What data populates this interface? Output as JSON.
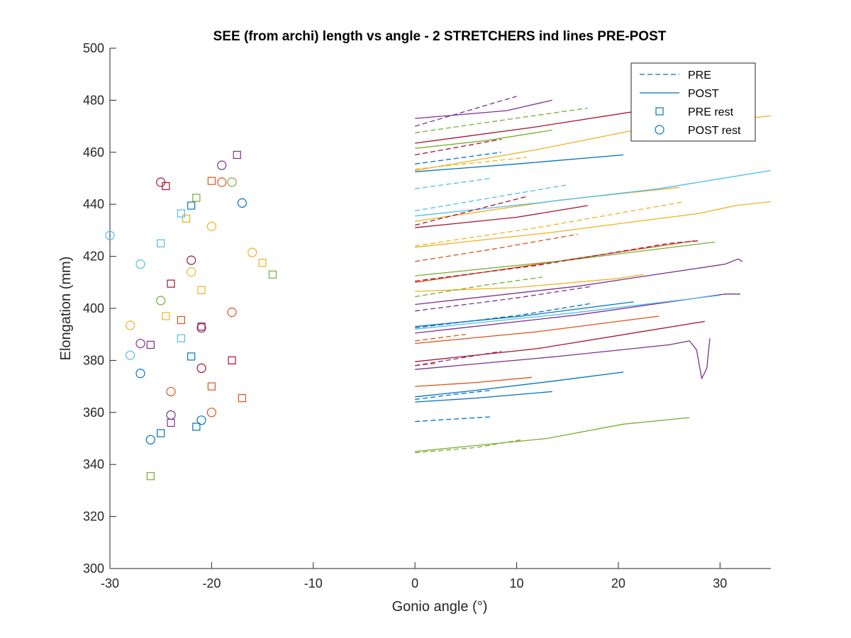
{
  "chart_data": {
    "type": "line",
    "title": "SEE (from archi) length vs angle - 2 STRETCHERS ind lines PRE-POST",
    "xlabel": "Gonio angle (°)",
    "ylabel": "Elongation (mm)",
    "xlim": [
      -30,
      35
    ],
    "ylim": [
      300,
      500
    ],
    "xticks": [
      -30,
      -20,
      -10,
      0,
      10,
      20,
      30
    ],
    "yticks": [
      300,
      320,
      340,
      360,
      380,
      400,
      420,
      440,
      460,
      480,
      500
    ],
    "grid": false,
    "legend": {
      "placement": "top-right",
      "entries": [
        {
          "label": "PRE",
          "kind": "dashed-line"
        },
        {
          "label": "POST",
          "kind": "solid-line"
        },
        {
          "label": "PRE rest",
          "kind": "square-marker"
        },
        {
          "label": "POST rest",
          "kind": "circle-marker"
        }
      ]
    },
    "colors": {
      "blue": "#0072BD",
      "orange": "#D95319",
      "yellow": "#EDB120",
      "purple": "#7E2F8E",
      "green": "#77AC30",
      "cyan": "#4DBEEE",
      "red": "#A2142F"
    },
    "series": [
      {
        "color": "blue",
        "style": "dashed",
        "points": [
          [
            0,
            356.5
          ],
          [
            7.5,
            358.3
          ]
        ]
      },
      {
        "color": "blue",
        "style": "dashed",
        "points": [
          [
            0,
            455.5
          ],
          [
            8.5,
            460.0
          ]
        ]
      },
      {
        "color": "blue",
        "style": "dashed",
        "points": [
          [
            0,
            392.5
          ],
          [
            10.5,
            397.5
          ],
          [
            17.5,
            402.0
          ]
        ]
      },
      {
        "color": "blue",
        "style": "dashed",
        "points": [
          [
            0,
            365.0
          ],
          [
            4.0,
            367.0
          ],
          [
            7.5,
            368.5
          ]
        ]
      },
      {
        "color": "blue",
        "style": "solid",
        "points": [
          [
            0,
            452.5
          ],
          [
            10.0,
            455.5
          ],
          [
            20.5,
            459.0
          ]
        ]
      },
      {
        "color": "blue",
        "style": "solid",
        "points": [
          [
            0,
            393.0
          ],
          [
            10.5,
            397.0
          ],
          [
            21.5,
            402.5
          ]
        ]
      },
      {
        "color": "blue",
        "style": "solid",
        "points": [
          [
            0,
            366.0
          ],
          [
            6.0,
            368.5
          ],
          [
            13.5,
            372.0
          ],
          [
            20.5,
            375.5
          ]
        ]
      },
      {
        "color": "blue",
        "style": "solid",
        "points": [
          [
            0,
            364.0
          ],
          [
            6.0,
            365.5
          ],
          [
            13.5,
            368.0
          ]
        ]
      },
      {
        "color": "orange",
        "style": "dashed",
        "points": [
          [
            0,
            418.0
          ],
          [
            8.0,
            423.0
          ],
          [
            16.0,
            428.5
          ]
        ]
      },
      {
        "color": "orange",
        "style": "dashed",
        "points": [
          [
            0,
            378.0
          ],
          [
            2.0,
            378.8
          ]
        ]
      },
      {
        "color": "orange",
        "style": "dashed",
        "points": [
          [
            0,
            387.5
          ],
          [
            5.0,
            390.0
          ]
        ]
      },
      {
        "color": "orange",
        "style": "solid",
        "points": [
          [
            0,
            410.0
          ],
          [
            13.0,
            417.5
          ],
          [
            27.5,
            426.0
          ]
        ]
      },
      {
        "color": "orange",
        "style": "solid",
        "points": [
          [
            0,
            386.5
          ],
          [
            12.0,
            391.0
          ],
          [
            24.0,
            397.0
          ]
        ]
      },
      {
        "color": "orange",
        "style": "solid",
        "points": [
          [
            0,
            370.0
          ],
          [
            6.0,
            371.5
          ],
          [
            11.5,
            373.5
          ]
        ]
      },
      {
        "color": "yellow",
        "style": "dashed",
        "points": [
          [
            0,
            424.0
          ],
          [
            12.0,
            431.0
          ],
          [
            26.5,
            441.0
          ]
        ]
      },
      {
        "color": "yellow",
        "style": "dashed",
        "points": [
          [
            0,
            453.5
          ],
          [
            6.0,
            456.0
          ],
          [
            11.0,
            458.0
          ]
        ]
      },
      {
        "color": "yellow",
        "style": "solid",
        "points": [
          [
            0,
            453.0
          ],
          [
            12.0,
            461.0
          ],
          [
            21.0,
            468.0
          ],
          [
            35.0,
            474.0
          ]
        ]
      },
      {
        "color": "yellow",
        "style": "solid",
        "points": [
          [
            0,
            433.5
          ],
          [
            14.0,
            441.5
          ],
          [
            26.0,
            446.5
          ]
        ]
      },
      {
        "color": "yellow",
        "style": "solid",
        "points": [
          [
            0,
            423.5
          ],
          [
            13.0,
            429.0
          ],
          [
            28.0,
            436.5
          ],
          [
            31.5,
            439.5
          ],
          [
            35.0,
            441.0
          ]
        ]
      },
      {
        "color": "yellow",
        "style": "solid",
        "points": [
          [
            0,
            406.5
          ],
          [
            10.0,
            408.0
          ],
          [
            20.0,
            411.5
          ],
          [
            22.5,
            413.0
          ]
        ]
      },
      {
        "color": "purple",
        "style": "dashed",
        "points": [
          [
            0,
            470.0
          ],
          [
            10.0,
            481.5
          ]
        ]
      },
      {
        "color": "purple",
        "style": "dashed",
        "points": [
          [
            0,
            399.0
          ],
          [
            10.0,
            404.0
          ],
          [
            17.5,
            408.5
          ]
        ]
      },
      {
        "color": "purple",
        "style": "dashed",
        "points": [
          [
            0,
            378.0
          ],
          [
            8.5,
            383.5
          ]
        ]
      },
      {
        "color": "purple",
        "style": "solid",
        "points": [
          [
            0,
            473.0
          ],
          [
            9.0,
            476.0
          ],
          [
            13.5,
            480.0
          ]
        ]
      },
      {
        "color": "purple",
        "style": "solid",
        "points": [
          [
            0,
            401.5
          ],
          [
            16.0,
            408.5
          ],
          [
            30.5,
            417.0
          ],
          [
            31.8,
            419.0
          ],
          [
            32.2,
            418.0
          ]
        ]
      },
      {
        "color": "purple",
        "style": "solid",
        "points": [
          [
            0,
            390.5
          ],
          [
            16.0,
            397.5
          ],
          [
            30.5,
            405.5
          ],
          [
            32.0,
            405.5
          ]
        ]
      },
      {
        "color": "purple",
        "style": "solid",
        "points": [
          [
            0,
            376.5
          ],
          [
            14.0,
            381.5
          ],
          [
            25.0,
            386.0
          ],
          [
            27.0,
            387.5
          ],
          [
            27.7,
            384.0
          ],
          [
            28.2,
            373.0
          ],
          [
            28.7,
            377.0
          ],
          [
            29.0,
            388.5
          ]
        ]
      },
      {
        "color": "green",
        "style": "dashed",
        "points": [
          [
            0,
            467.5
          ],
          [
            8.0,
            472.0
          ],
          [
            17.0,
            477.0
          ]
        ]
      },
      {
        "color": "green",
        "style": "dashed",
        "points": [
          [
            0,
            404.5
          ],
          [
            7.0,
            409.0
          ],
          [
            12.5,
            412.0
          ]
        ]
      },
      {
        "color": "green",
        "style": "dashed",
        "points": [
          [
            0,
            344.5
          ],
          [
            6.0,
            346.5
          ],
          [
            10.5,
            349.5
          ]
        ]
      },
      {
        "color": "green",
        "style": "solid",
        "points": [
          [
            0,
            461.5
          ],
          [
            7.0,
            464.5
          ],
          [
            13.5,
            468.5
          ]
        ]
      },
      {
        "color": "green",
        "style": "solid",
        "points": [
          [
            0,
            412.5
          ],
          [
            15.0,
            418.5
          ],
          [
            29.5,
            425.5
          ]
        ]
      },
      {
        "color": "green",
        "style": "solid",
        "points": [
          [
            0,
            345.0
          ],
          [
            13.0,
            350.0
          ],
          [
            20.5,
            355.5
          ],
          [
            27.0,
            358.0
          ]
        ]
      },
      {
        "color": "cyan",
        "style": "dashed",
        "points": [
          [
            0,
            446.0
          ],
          [
            7.5,
            450.0
          ]
        ]
      },
      {
        "color": "cyan",
        "style": "dashed",
        "points": [
          [
            0,
            437.5
          ],
          [
            15.0,
            447.5
          ]
        ]
      },
      {
        "color": "cyan",
        "style": "solid",
        "points": [
          [
            0,
            435.5
          ],
          [
            12.0,
            440.5
          ],
          [
            24.0,
            446.0
          ],
          [
            35.0,
            453.0
          ]
        ]
      },
      {
        "color": "cyan",
        "style": "solid",
        "points": [
          [
            0,
            392.0
          ],
          [
            15.0,
            398.0
          ],
          [
            30.0,
            405.0
          ]
        ]
      },
      {
        "color": "red",
        "style": "dashed",
        "points": [
          [
            0,
            459.0
          ],
          [
            8.5,
            465.0
          ]
        ]
      },
      {
        "color": "red",
        "style": "dashed",
        "points": [
          [
            0,
            432.0
          ],
          [
            11.0,
            443.0
          ]
        ]
      },
      {
        "color": "red",
        "style": "dashed",
        "points": [
          [
            0,
            410.5
          ],
          [
            12.0,
            416.5
          ],
          [
            25.0,
            425.0
          ],
          [
            28.0,
            426.0
          ]
        ]
      },
      {
        "color": "red",
        "style": "solid",
        "points": [
          [
            0,
            463.5
          ],
          [
            11.5,
            469.5
          ],
          [
            23.0,
            476.5
          ],
          [
            27.0,
            478.5
          ]
        ]
      },
      {
        "color": "red",
        "style": "solid",
        "points": [
          [
            0,
            431.0
          ],
          [
            10.0,
            435.0
          ],
          [
            17.0,
            439.5
          ]
        ]
      },
      {
        "color": "red",
        "style": "solid",
        "points": [
          [
            0,
            379.5
          ],
          [
            12.0,
            384.5
          ],
          [
            28.5,
            395.0
          ]
        ]
      }
    ],
    "markers": [
      {
        "kind": "square",
        "color": "blue",
        "x": -22.0,
        "y": 439.5
      },
      {
        "kind": "square",
        "color": "blue",
        "x": -22.0,
        "y": 381.5
      },
      {
        "kind": "square",
        "color": "blue",
        "x": -21.5,
        "y": 354.5
      },
      {
        "kind": "square",
        "color": "blue",
        "x": -25.0,
        "y": 352.0
      },
      {
        "kind": "square",
        "color": "orange",
        "x": -20.0,
        "y": 449.0
      },
      {
        "kind": "square",
        "color": "orange",
        "x": -23.0,
        "y": 395.5
      },
      {
        "kind": "square",
        "color": "orange",
        "x": -20.0,
        "y": 370.0
      },
      {
        "kind": "square",
        "color": "orange",
        "x": -17.0,
        "y": 365.5
      },
      {
        "kind": "square",
        "color": "yellow",
        "x": -22.5,
        "y": 434.5
      },
      {
        "kind": "square",
        "color": "yellow",
        "x": -15.0,
        "y": 417.5
      },
      {
        "kind": "square",
        "color": "yellow",
        "x": -21.0,
        "y": 407.0
      },
      {
        "kind": "square",
        "color": "yellow",
        "x": -24.5,
        "y": 397.0
      },
      {
        "kind": "square",
        "color": "purple",
        "x": -17.5,
        "y": 459.0
      },
      {
        "kind": "square",
        "color": "purple",
        "x": -26.0,
        "y": 386.0
      },
      {
        "kind": "square",
        "color": "purple",
        "x": -24.0,
        "y": 356.0
      },
      {
        "kind": "square",
        "color": "green",
        "x": -21.5,
        "y": 442.5
      },
      {
        "kind": "square",
        "color": "green",
        "x": -14.0,
        "y": 413.0
      },
      {
        "kind": "square",
        "color": "green",
        "x": -26.0,
        "y": 335.5
      },
      {
        "kind": "square",
        "color": "cyan",
        "x": -23.0,
        "y": 436.5
      },
      {
        "kind": "square",
        "color": "cyan",
        "x": -25.0,
        "y": 425.0
      },
      {
        "kind": "square",
        "color": "cyan",
        "x": -23.0,
        "y": 388.5
      },
      {
        "kind": "square",
        "color": "red",
        "x": -24.5,
        "y": 447.0
      },
      {
        "kind": "square",
        "color": "red",
        "x": -24.0,
        "y": 409.5
      },
      {
        "kind": "square",
        "color": "red",
        "x": -21.0,
        "y": 393.0
      },
      {
        "kind": "square",
        "color": "red",
        "x": -18.0,
        "y": 380.0
      },
      {
        "kind": "circle",
        "color": "blue",
        "x": -17.0,
        "y": 440.5
      },
      {
        "kind": "circle",
        "color": "blue",
        "x": -27.0,
        "y": 375.0
      },
      {
        "kind": "circle",
        "color": "blue",
        "x": -21.0,
        "y": 357.0
      },
      {
        "kind": "circle",
        "color": "blue",
        "x": -26.0,
        "y": 349.5
      },
      {
        "kind": "circle",
        "color": "orange",
        "x": -19.0,
        "y": 448.5
      },
      {
        "kind": "circle",
        "color": "orange",
        "x": -18.0,
        "y": 398.5
      },
      {
        "kind": "circle",
        "color": "orange",
        "x": -24.0,
        "y": 368.0
      },
      {
        "kind": "circle",
        "color": "orange",
        "x": -20.0,
        "y": 360.0
      },
      {
        "kind": "circle",
        "color": "yellow",
        "x": -20.0,
        "y": 431.5
      },
      {
        "kind": "circle",
        "color": "yellow",
        "x": -16.0,
        "y": 421.5
      },
      {
        "kind": "circle",
        "color": "yellow",
        "x": -22.0,
        "y": 414.0
      },
      {
        "kind": "circle",
        "color": "yellow",
        "x": -28.0,
        "y": 393.5
      },
      {
        "kind": "circle",
        "color": "purple",
        "x": -19.0,
        "y": 455.0
      },
      {
        "kind": "circle",
        "color": "purple",
        "x": -21.0,
        "y": 392.5
      },
      {
        "kind": "circle",
        "color": "purple",
        "x": -27.0,
        "y": 386.5
      },
      {
        "kind": "circle",
        "color": "purple",
        "x": -24.0,
        "y": 359.0
      },
      {
        "kind": "circle",
        "color": "green",
        "x": -18.0,
        "y": 448.5
      },
      {
        "kind": "circle",
        "color": "green",
        "x": -25.0,
        "y": 403.0
      },
      {
        "kind": "circle",
        "color": "cyan",
        "x": -30.0,
        "y": 428.0
      },
      {
        "kind": "circle",
        "color": "cyan",
        "x": -27.0,
        "y": 417.0
      },
      {
        "kind": "circle",
        "color": "cyan",
        "x": -28.0,
        "y": 382.0
      },
      {
        "kind": "circle",
        "color": "red",
        "x": -25.0,
        "y": 448.5
      },
      {
        "kind": "circle",
        "color": "red",
        "x": -22.0,
        "y": 418.5
      },
      {
        "kind": "circle",
        "color": "red",
        "x": -21.0,
        "y": 377.0
      }
    ]
  }
}
